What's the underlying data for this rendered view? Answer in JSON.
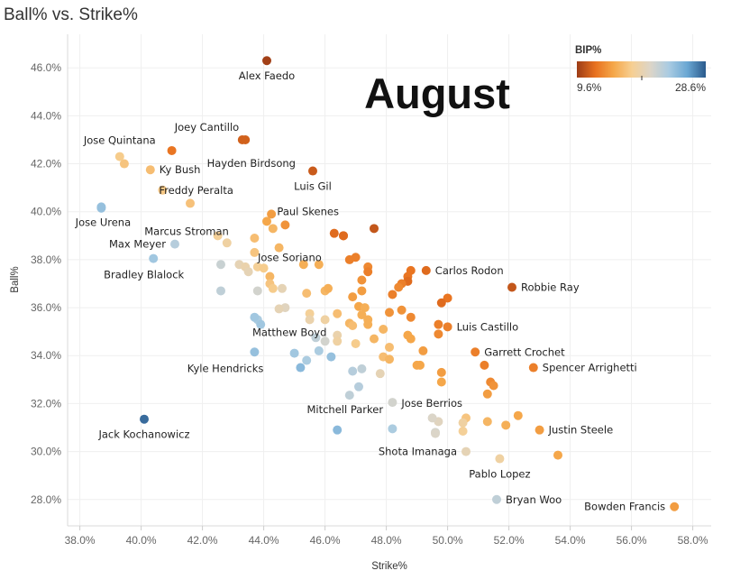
{
  "chart_data": {
    "type": "scatter",
    "title": "Ball% vs. Strike%",
    "xlabel": "Strike%",
    "ylabel": "Ball%",
    "annotation": "August",
    "xlim": [
      37.6,
      58.6
    ],
    "ylim": [
      26.9,
      47.4
    ],
    "xticks": [
      "38.0%",
      "40.0%",
      "42.0%",
      "44.0%",
      "46.0%",
      "48.0%",
      "50.0%",
      "52.0%",
      "54.0%",
      "56.0%",
      "58.0%"
    ],
    "xtick_values": [
      38,
      40,
      42,
      44,
      46,
      48,
      50,
      52,
      54,
      56,
      58
    ],
    "yticks": [
      "28.0%",
      "30.0%",
      "32.0%",
      "34.0%",
      "36.0%",
      "38.0%",
      "40.0%",
      "42.0%",
      "44.0%",
      "46.0%"
    ],
    "ytick_values": [
      28,
      30,
      32,
      34,
      36,
      38,
      40,
      42,
      44,
      46
    ],
    "color_legend": {
      "title": "BIP%",
      "min_label": "9.6%",
      "max_label": "28.6%",
      "min": 9.6,
      "max": 28.6,
      "colors": [
        "#9c3c16",
        "#e8711f",
        "#f5a84a",
        "#f6cf93",
        "#dcd5c8",
        "#a9cbe2",
        "#6aa7d3",
        "#2a5a8c"
      ]
    },
    "labeled_points": [
      {
        "name": "Alex Faedo",
        "x": 44.1,
        "y": 46.3,
        "bip": 9.8
      },
      {
        "name": "Joey Cantillo",
        "x": 43.4,
        "y": 43.0,
        "bip": 11.5
      },
      {
        "name": "Hayden Birdsong",
        "x": 41.0,
        "y": 42.55,
        "bip": 12.5
      },
      {
        "name": "Jose Quintana",
        "x": 39.3,
        "y": 42.3,
        "bip": 17.5
      },
      {
        "name": "Ky Bush",
        "x": 40.3,
        "y": 41.75,
        "bip": 16.5
      },
      {
        "name": "Luis Gil",
        "x": 45.6,
        "y": 41.7,
        "bip": 11.2
      },
      {
        "name": "Freddy Peralta",
        "x": 40.7,
        "y": 40.9,
        "bip": 17.2
      },
      {
        "name": "Jose Urena",
        "x": 38.7,
        "y": 40.15,
        "bip": 24.0
      },
      {
        "name": "Marcus Stroman",
        "x": 41.6,
        "y": 40.35,
        "bip": 16.8
      },
      {
        "name": "Paul Skenes",
        "x": 47.6,
        "y": 39.3,
        "bip": 11.0
      },
      {
        "name": "Jose Soriano",
        "x": 46.6,
        "y": 39.0,
        "bip": 12.0
      },
      {
        "name": "Max Meyer",
        "x": 41.1,
        "y": 38.65,
        "bip": 22.5
      },
      {
        "name": "Carlos Rodon",
        "x": 49.3,
        "y": 37.55,
        "bip": 12.0
      },
      {
        "name": "Bradley Blalock",
        "x": 40.4,
        "y": 38.05,
        "bip": 23.5
      },
      {
        "name": "Robbie Ray",
        "x": 52.1,
        "y": 36.85,
        "bip": 11.0
      },
      {
        "name": "Luis Castillo",
        "x": 50.0,
        "y": 35.2,
        "bip": 13.0
      },
      {
        "name": "Matthew Boyd",
        "x": 43.7,
        "y": 35.6,
        "bip": 23.5
      },
      {
        "name": "Garrett Crochet",
        "x": 50.9,
        "y": 34.15,
        "bip": 13.0
      },
      {
        "name": "Kyle Hendricks",
        "x": 43.7,
        "y": 34.15,
        "bip": 24.0
      },
      {
        "name": "Spencer Arrighetti",
        "x": 52.8,
        "y": 33.5,
        "bip": 13.0
      },
      {
        "name": "Jose Berrios",
        "x": 48.2,
        "y": 32.05,
        "bip": 21.0
      },
      {
        "name": "Mitchell Parker",
        "x": 46.8,
        "y": 32.35,
        "bip": 22.0
      },
      {
        "name": "Jack Kochanowicz",
        "x": 40.1,
        "y": 31.35,
        "bip": 28.0
      },
      {
        "name": "Justin Steele",
        "x": 53.0,
        "y": 30.9,
        "bip": 14.5
      },
      {
        "name": "Shota Imanaga",
        "x": 50.6,
        "y": 30.0,
        "bip": 19.5
      },
      {
        "name": "Pablo Lopez",
        "x": 51.7,
        "y": 29.7,
        "bip": 18.5
      },
      {
        "name": "Bryan Woo",
        "x": 51.6,
        "y": 28.0,
        "bip": 22.0
      },
      {
        "name": "Bowden Francis",
        "x": 57.4,
        "y": 27.7,
        "bip": 14.5
      }
    ],
    "other_points": [
      [
        43.3,
        43.0,
        11.5
      ],
      [
        39.45,
        42.0,
        17.0
      ],
      [
        38.7,
        40.2,
        24.0
      ],
      [
        44.25,
        39.9,
        14.5
      ],
      [
        44.1,
        39.6,
        15.0
      ],
      [
        44.7,
        39.45,
        14.0
      ],
      [
        44.3,
        39.3,
        16.0
      ],
      [
        46.3,
        39.1,
        12.0
      ],
      [
        46.6,
        39.0,
        12.0
      ],
      [
        42.5,
        39.0,
        18.0
      ],
      [
        42.8,
        38.7,
        18.5
      ],
      [
        43.7,
        38.9,
        16.5
      ],
      [
        44.5,
        38.5,
        16.0
      ],
      [
        43.7,
        38.3,
        17.0
      ],
      [
        47.0,
        38.1,
        13.0
      ],
      [
        46.8,
        38.0,
        13.0
      ],
      [
        45.3,
        37.8,
        15.5
      ],
      [
        45.8,
        37.8,
        15.5
      ],
      [
        42.6,
        37.8,
        21.5
      ],
      [
        43.2,
        37.8,
        19.5
      ],
      [
        43.4,
        37.7,
        19.0
      ],
      [
        43.5,
        37.5,
        19.5
      ],
      [
        43.8,
        37.7,
        18.0
      ],
      [
        44.0,
        37.65,
        17.5
      ],
      [
        47.4,
        37.7,
        13.5
      ],
      [
        47.4,
        37.5,
        13.0
      ],
      [
        48.8,
        37.55,
        12.5
      ],
      [
        48.7,
        37.3,
        12.5
      ],
      [
        47.2,
        37.15,
        14.0
      ],
      [
        48.7,
        37.1,
        12.0
      ],
      [
        48.5,
        37.0,
        13.0
      ],
      [
        44.2,
        37.3,
        16.0
      ],
      [
        44.2,
        37.0,
        17.0
      ],
      [
        44.3,
        36.8,
        17.5
      ],
      [
        42.6,
        36.7,
        22.0
      ],
      [
        43.8,
        36.7,
        21.0
      ],
      [
        44.6,
        36.8,
        19.5
      ],
      [
        45.4,
        36.6,
        16.5
      ],
      [
        46.0,
        36.7,
        16.0
      ],
      [
        46.1,
        36.8,
        15.5
      ],
      [
        46.9,
        36.45,
        14.5
      ],
      [
        47.2,
        36.7,
        14.5
      ],
      [
        48.4,
        36.85,
        13.5
      ],
      [
        48.2,
        36.55,
        13.0
      ],
      [
        50.0,
        36.4,
        12.5
      ],
      [
        49.8,
        36.2,
        12.0
      ],
      [
        44.7,
        36.0,
        20.0
      ],
      [
        44.5,
        35.95,
        19.5
      ],
      [
        45.5,
        35.75,
        18.0
      ],
      [
        45.5,
        35.5,
        19.0
      ],
      [
        46.0,
        35.5,
        18.5
      ],
      [
        46.4,
        35.75,
        16.5
      ],
      [
        47.1,
        36.05,
        15.0
      ],
      [
        47.3,
        36.0,
        15.5
      ],
      [
        47.2,
        35.7,
        15.5
      ],
      [
        47.4,
        35.5,
        15.5
      ],
      [
        47.4,
        35.3,
        15.5
      ],
      [
        46.8,
        35.35,
        16.0
      ],
      [
        46.9,
        35.25,
        16.5
      ],
      [
        48.1,
        35.8,
        14.0
      ],
      [
        48.5,
        35.9,
        14.0
      ],
      [
        48.8,
        35.6,
        13.5
      ],
      [
        49.7,
        35.3,
        13.0
      ],
      [
        49.7,
        34.9,
        13.5
      ],
      [
        47.9,
        35.1,
        16.0
      ],
      [
        43.8,
        35.5,
        23.0
      ],
      [
        43.9,
        35.3,
        23.5
      ],
      [
        45.7,
        34.75,
        22.0
      ],
      [
        46.0,
        34.6,
        21.0
      ],
      [
        46.4,
        34.85,
        19.0
      ],
      [
        46.4,
        34.6,
        18.5
      ],
      [
        47.0,
        34.5,
        17.5
      ],
      [
        47.6,
        34.7,
        16.0
      ],
      [
        48.1,
        34.35,
        16.5
      ],
      [
        48.8,
        34.7,
        15.0
      ],
      [
        48.7,
        34.85,
        15.0
      ],
      [
        49.2,
        34.2,
        14.5
      ],
      [
        45.8,
        34.2,
        23.0
      ],
      [
        45.0,
        34.1,
        23.5
      ],
      [
        46.2,
        33.95,
        24.0
      ],
      [
        45.4,
        33.8,
        23.0
      ],
      [
        47.9,
        33.95,
        16.5
      ],
      [
        48.1,
        33.85,
        16.0
      ],
      [
        49.0,
        33.6,
        15.0
      ],
      [
        49.1,
        33.6,
        15.0
      ],
      [
        49.8,
        33.3,
        14.5
      ],
      [
        51.2,
        33.6,
        13.0
      ],
      [
        51.4,
        32.9,
        13.5
      ],
      [
        51.5,
        32.75,
        14.0
      ],
      [
        45.2,
        33.5,
        24.5
      ],
      [
        46.9,
        33.35,
        22.5
      ],
      [
        47.2,
        33.45,
        22.0
      ],
      [
        47.8,
        33.25,
        19.5
      ],
      [
        49.8,
        32.9,
        15.0
      ],
      [
        47.1,
        32.7,
        22.5
      ],
      [
        51.3,
        32.4,
        14.5
      ],
      [
        52.3,
        31.5,
        15.0
      ],
      [
        50.6,
        31.4,
        17.0
      ],
      [
        49.7,
        31.25,
        20.0
      ],
      [
        49.5,
        31.4,
        20.5
      ],
      [
        50.5,
        31.2,
        18.5
      ],
      [
        51.3,
        31.25,
        16.0
      ],
      [
        51.9,
        31.1,
        15.5
      ],
      [
        46.4,
        30.9,
        24.5
      ],
      [
        48.2,
        30.95,
        23.0
      ],
      [
        49.6,
        30.8,
        21.0
      ],
      [
        49.6,
        30.75,
        20.5
      ],
      [
        50.5,
        30.85,
        18.0
      ],
      [
        53.6,
        29.85,
        15.0
      ]
    ]
  }
}
